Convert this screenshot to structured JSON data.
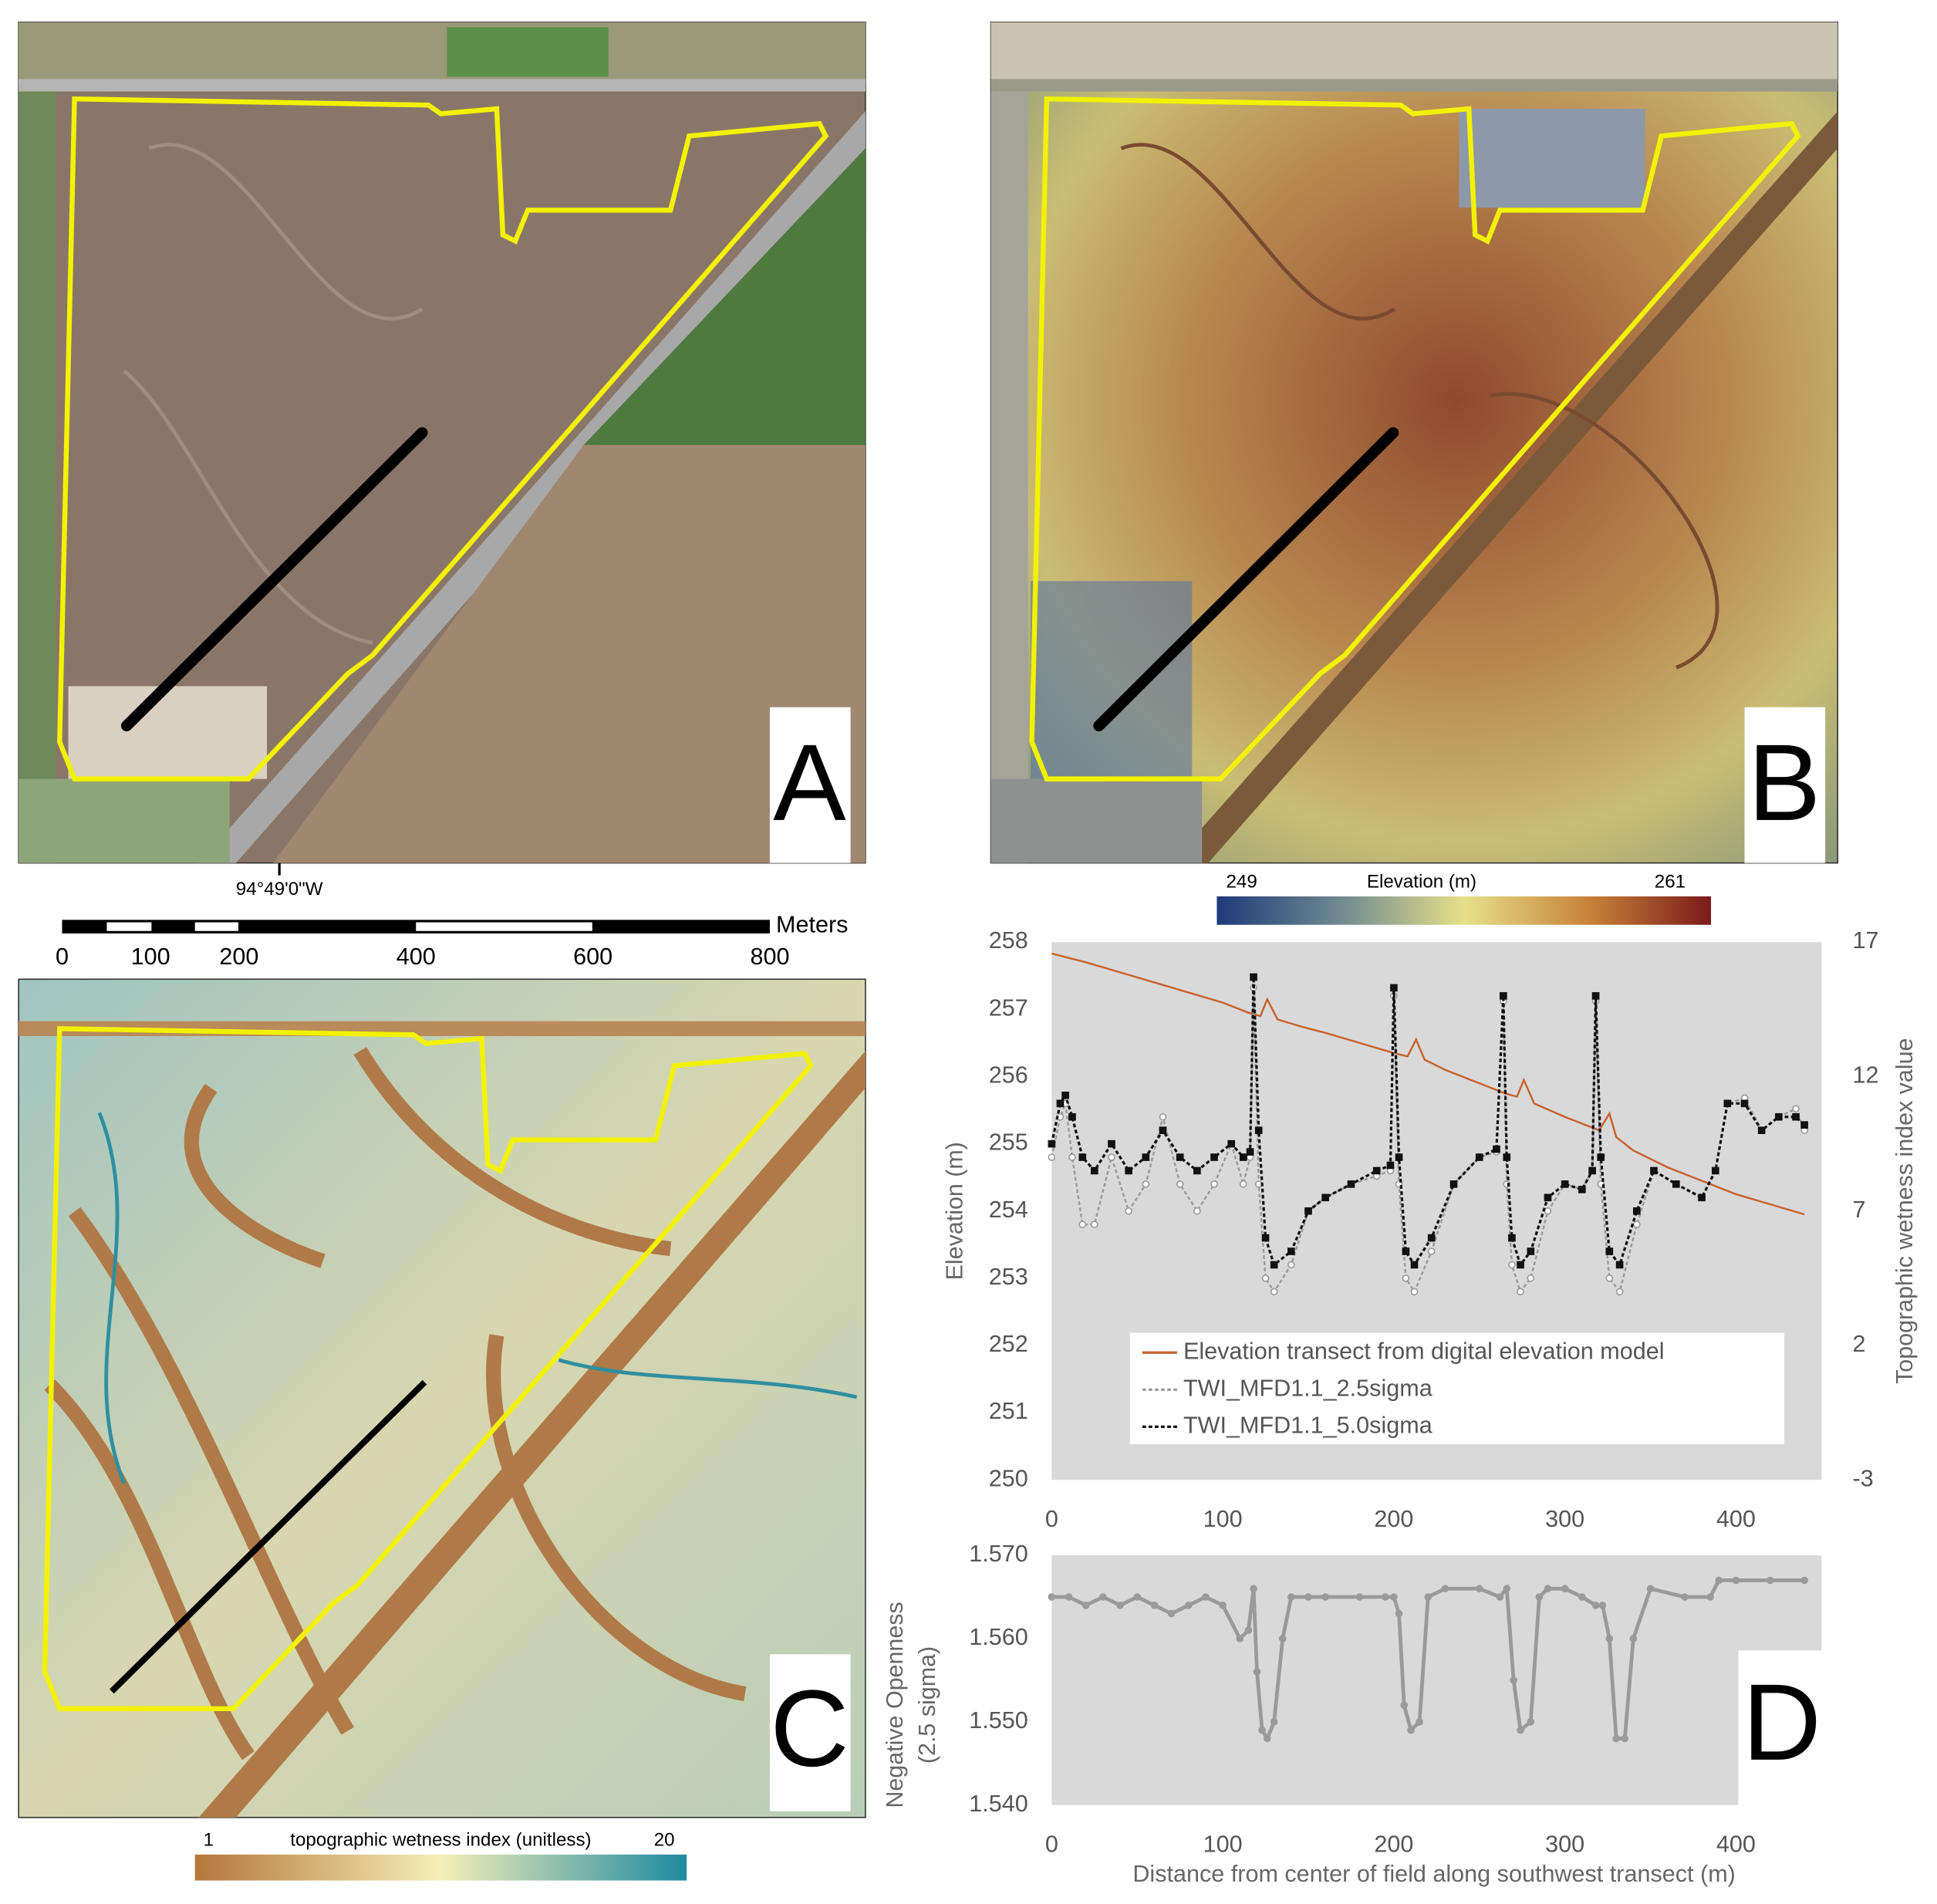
{
  "panel_labels": [
    "A",
    "B",
    "C",
    "D"
  ],
  "map_a": {
    "longitude_label": "94°49'0\"W"
  },
  "scale_bar": {
    "ticks": [
      0,
      100,
      200,
      400,
      600,
      800
    ],
    "unit": "Meters"
  },
  "colorbar_b": {
    "min": 249,
    "max": 261,
    "title": "Elevation (m)"
  },
  "colorbar_c": {
    "min": 1,
    "max": 20,
    "title": "topographic wetness index (unitless)"
  },
  "chart_data": [
    {
      "type": "line",
      "ylabel": "Elevation (m)",
      "y2label": "Topographic wetness index value",
      "xlim": [
        0,
        450
      ],
      "xticks": [
        0,
        100,
        200,
        300,
        400
      ],
      "ylim": [
        250,
        258
      ],
      "yticks": [
        250,
        251,
        252,
        253,
        254,
        255,
        256,
        257,
        258
      ],
      "y2lim": [
        -3,
        17
      ],
      "y2ticks": [
        -3,
        2,
        7,
        12,
        17
      ],
      "series": [
        {
          "name": "Elevation transect from digital elevation model",
          "color": "#c8602a",
          "x": [
            0,
            20,
            40,
            60,
            80,
            100,
            115,
            122,
            126,
            132,
            145,
            160,
            180,
            200,
            208,
            213,
            218,
            230,
            250,
            265,
            272,
            276,
            282,
            300,
            320,
            326,
            330,
            340,
            360,
            380,
            400,
            420,
            440
          ],
          "values": [
            257.83,
            257.7,
            257.55,
            257.4,
            257.25,
            257.1,
            256.95,
            256.9,
            257.15,
            256.85,
            256.75,
            256.65,
            256.5,
            256.35,
            256.3,
            256.55,
            256.25,
            256.1,
            255.9,
            255.75,
            255.7,
            255.95,
            255.6,
            255.4,
            255.2,
            255.45,
            255.1,
            254.9,
            254.65,
            254.45,
            254.25,
            254.1,
            253.95
          ]
        },
        {
          "name": "TWI_MFD1.1_2.5sigma",
          "color": "#999999",
          "axis": "y2",
          "x": [
            0,
            5,
            8,
            12,
            18,
            25,
            35,
            45,
            55,
            65,
            75,
            85,
            95,
            105,
            112,
            116,
            118,
            121,
            125,
            130,
            140,
            150,
            160,
            175,
            190,
            198,
            200,
            203,
            207,
            212,
            222,
            235,
            250,
            260,
            264,
            266,
            269,
            274,
            280,
            290,
            300,
            310,
            316,
            318,
            321,
            326,
            332,
            342,
            352,
            365,
            380,
            388,
            395,
            405,
            415,
            425,
            435,
            440
          ],
          "values": [
            9,
            10.5,
            11,
            9,
            6.5,
            6.5,
            9,
            7,
            8,
            10.5,
            8,
            7,
            8,
            9.5,
            8,
            9,
            15.3,
            8,
            4.5,
            4,
            5,
            7,
            7.5,
            8,
            8.3,
            8.5,
            15,
            8,
            4.5,
            4,
            5.5,
            8,
            9,
            9.2,
            14.8,
            8,
            5,
            4,
            4.5,
            7,
            8,
            7.8,
            8.5,
            14.8,
            8,
            4.5,
            4,
            6.5,
            8.5,
            8,
            7.5,
            8.5,
            11,
            11.2,
            10,
            10.5,
            10.8,
            10
          ]
        },
        {
          "name": "TWI_MFD1.1_5.0sigma",
          "color": "#111111",
          "axis": "y2",
          "x": [
            0,
            5,
            8,
            12,
            18,
            25,
            35,
            45,
            55,
            65,
            75,
            85,
            95,
            105,
            112,
            116,
            118,
            121,
            125,
            130,
            140,
            150,
            160,
            175,
            190,
            198,
            200,
            203,
            207,
            212,
            222,
            235,
            250,
            260,
            264,
            266,
            269,
            274,
            280,
            290,
            300,
            310,
            316,
            318,
            321,
            326,
            332,
            342,
            352,
            365,
            380,
            388,
            395,
            405,
            415,
            425,
            435,
            440
          ],
          "values": [
            9.5,
            11,
            11.3,
            10.5,
            9,
            8.5,
            9.5,
            8.5,
            9,
            10,
            9,
            8.5,
            9,
            9.5,
            9,
            9.2,
            15.7,
            10,
            6,
            5,
            5.5,
            7,
            7.5,
            8,
            8.5,
            8.7,
            15.3,
            9,
            5.5,
            5,
            6,
            8,
            9,
            9.3,
            15,
            9,
            6,
            5,
            5.5,
            7.5,
            8,
            7.8,
            8.5,
            15,
            9,
            5.5,
            5,
            7,
            8.5,
            8,
            7.5,
            8.5,
            11,
            11,
            10,
            10.5,
            10.5,
            10.2
          ]
        }
      ]
    },
    {
      "type": "line",
      "ylabel": [
        "Negative Openness",
        "(2.5 sigma)"
      ],
      "xlabel": "Distance from center of field along southwest transect (m)",
      "xlim": [
        0,
        450
      ],
      "xticks": [
        0,
        100,
        200,
        300,
        400
      ],
      "ylim": [
        1.54,
        1.57
      ],
      "yticks": [
        {
          "value": 1.54,
          "label": "1.540"
        },
        {
          "value": 1.55,
          "label": "1.550"
        },
        {
          "value": 1.56,
          "label": "1.560"
        },
        {
          "value": 1.57,
          "label": "1.570"
        }
      ],
      "series": [
        {
          "name": "Negative Openness",
          "color": "#9a9a9a",
          "x": [
            0,
            10,
            20,
            30,
            40,
            50,
            60,
            70,
            80,
            90,
            100,
            110,
            115,
            118,
            120,
            123,
            126,
            130,
            135,
            140,
            150,
            160,
            180,
            195,
            200,
            203,
            206,
            210,
            215,
            220,
            230,
            250,
            262,
            266,
            270,
            274,
            280,
            285,
            290,
            300,
            310,
            318,
            322,
            326,
            330,
            335,
            340,
            350,
            370,
            385,
            390,
            400,
            420,
            440
          ],
          "values": [
            1.565,
            1.565,
            1.564,
            1.565,
            1.564,
            1.565,
            1.564,
            1.563,
            1.564,
            1.565,
            1.564,
            1.56,
            1.561,
            1.566,
            1.556,
            1.549,
            1.548,
            1.55,
            1.56,
            1.565,
            1.565,
            1.565,
            1.565,
            1.565,
            1.565,
            1.563,
            1.552,
            1.549,
            1.55,
            1.565,
            1.566,
            1.566,
            1.565,
            1.566,
            1.555,
            1.549,
            1.55,
            1.565,
            1.566,
            1.566,
            1.565,
            1.564,
            1.564,
            1.56,
            1.548,
            1.548,
            1.56,
            1.566,
            1.565,
            1.565,
            1.567,
            1.567,
            1.567,
            1.567
          ]
        }
      ]
    }
  ]
}
